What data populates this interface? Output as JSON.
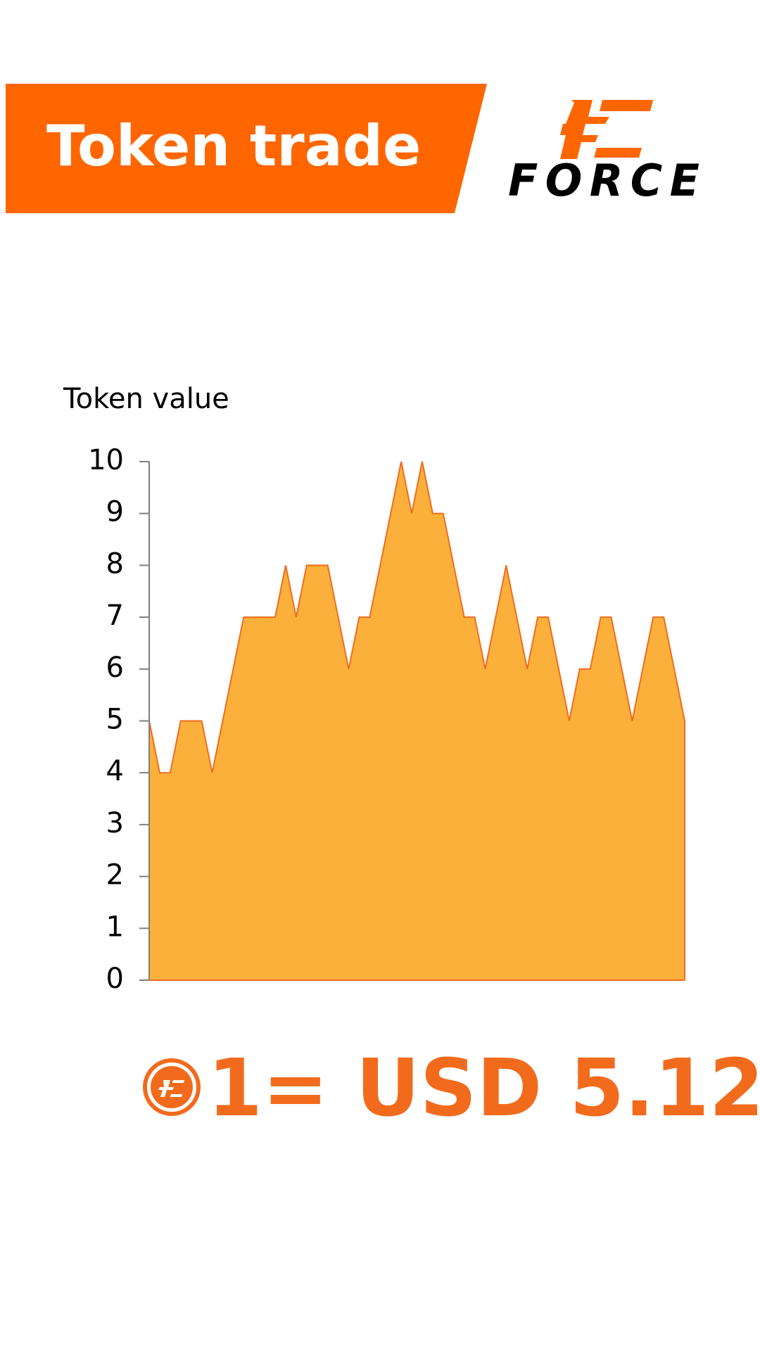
{
  "header": {
    "title": "Token trade",
    "logo": "FORCE"
  },
  "chart_data": {
    "type": "area",
    "ylabel": "Token value",
    "values": [
      5,
      4,
      4,
      5,
      5,
      5,
      4,
      5,
      6,
      7,
      7,
      7,
      7,
      8,
      7,
      8,
      8,
      8,
      7,
      6,
      7,
      7,
      8,
      9,
      10,
      9,
      10,
      9,
      9,
      8,
      7,
      7,
      6,
      7,
      8,
      7,
      6,
      7,
      7,
      6,
      5,
      6,
      6,
      7,
      7,
      6,
      5,
      6,
      7,
      7,
      6,
      5
    ],
    "color": "#fbb03b",
    "line_color": "#f26b1d",
    "ylim": [
      0,
      10
    ],
    "yticks": [
      0,
      1,
      2,
      3,
      4,
      5,
      6,
      7,
      8,
      9,
      10
    ]
  },
  "rate": "1= USD 5.12"
}
